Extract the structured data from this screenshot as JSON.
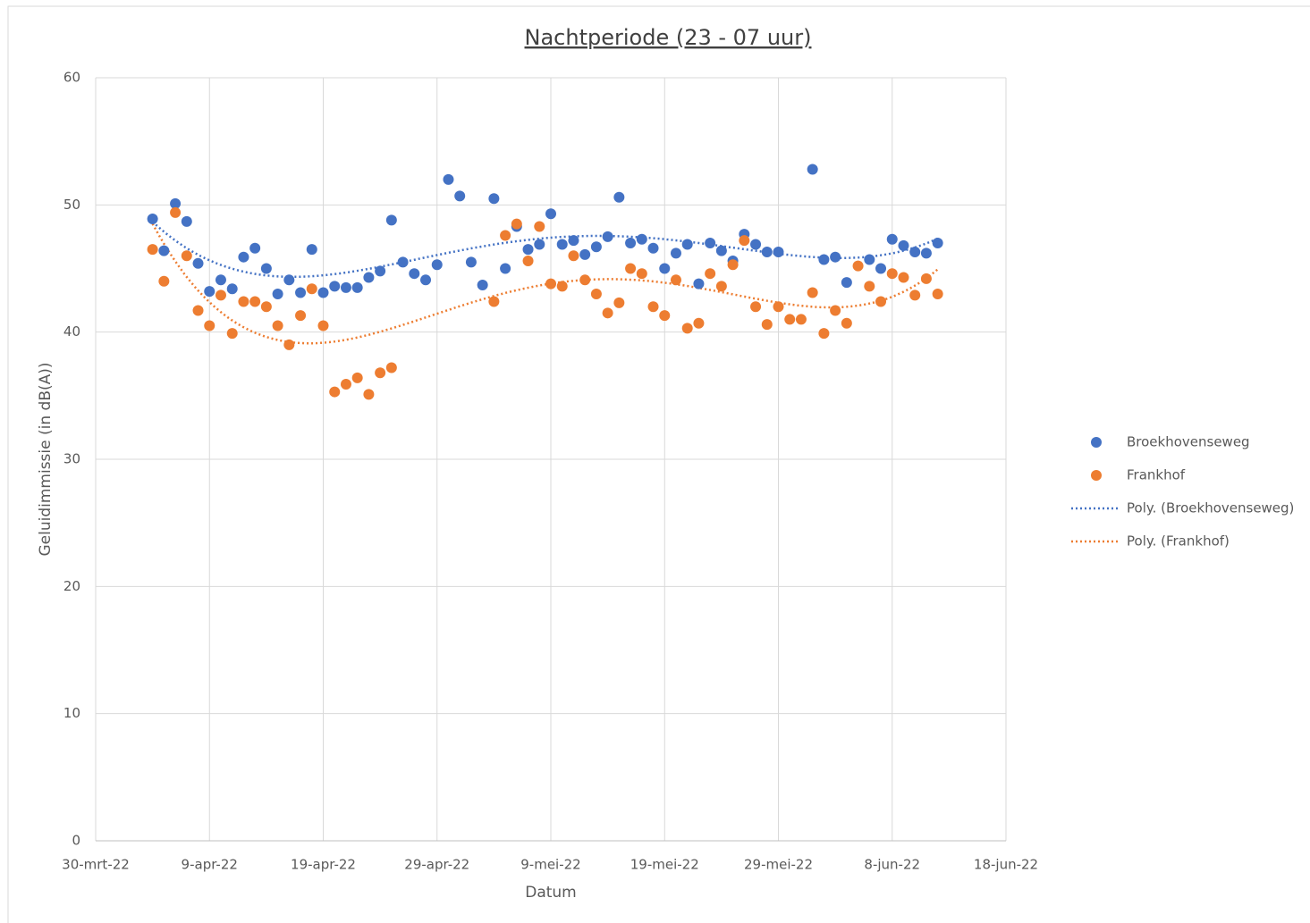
{
  "chart_data": {
    "type": "scatter",
    "title": "Nachtperiode (23 - 07 uur)",
    "x_label": "Datum",
    "y_label": "Geluidimmissie (in dB(A))",
    "x": [
      "2022-04-04",
      "2022-04-05",
      "2022-04-06",
      "2022-04-07",
      "2022-04-08",
      "2022-04-09",
      "2022-04-10",
      "2022-04-11",
      "2022-04-12",
      "2022-04-13",
      "2022-04-14",
      "2022-04-15",
      "2022-04-16",
      "2022-04-17",
      "2022-04-18",
      "2022-04-19",
      "2022-04-20",
      "2022-04-21",
      "2022-04-22",
      "2022-04-23",
      "2022-04-24",
      "2022-04-25",
      "2022-04-26",
      "2022-04-27",
      "2022-04-28",
      "2022-04-29",
      "2022-04-30",
      "2022-05-01",
      "2022-05-02",
      "2022-05-03",
      "2022-05-04",
      "2022-05-05",
      "2022-05-06",
      "2022-05-07",
      "2022-05-08",
      "2022-05-09",
      "2022-05-10",
      "2022-05-11",
      "2022-05-12",
      "2022-05-13",
      "2022-05-14",
      "2022-05-15",
      "2022-05-16",
      "2022-05-17",
      "2022-05-18",
      "2022-05-19",
      "2022-05-20",
      "2022-05-21",
      "2022-05-22",
      "2022-05-23",
      "2022-05-24",
      "2022-05-25",
      "2022-05-26",
      "2022-05-27",
      "2022-05-28",
      "2022-05-29",
      "2022-05-30",
      "2022-05-31",
      "2022-06-01",
      "2022-06-02",
      "2022-06-03",
      "2022-06-04",
      "2022-06-05",
      "2022-06-06",
      "2022-06-07",
      "2022-06-08",
      "2022-06-09",
      "2022-06-10",
      "2022-06-11",
      "2022-06-12"
    ],
    "series": [
      {
        "name": "Broekhovenseweg",
        "color": "#4472c4",
        "values": [
          48.9,
          46.4,
          50.1,
          48.7,
          45.4,
          43.2,
          44.1,
          43.4,
          45.9,
          46.6,
          45.0,
          43.0,
          44.1,
          43.1,
          46.5,
          43.1,
          43.6,
          43.5,
          43.5,
          44.3,
          44.8,
          48.8,
          45.5,
          44.6,
          44.1,
          45.3,
          52.0,
          50.7,
          45.5,
          43.7,
          50.5,
          45.0,
          48.3,
          46.5,
          46.9,
          49.3,
          46.9,
          47.2,
          46.1,
          46.7,
          47.5,
          50.6,
          47.0,
          47.3,
          46.6,
          45.0,
          46.2,
          46.9,
          43.8,
          47.0,
          46.4,
          45.6,
          47.7,
          46.9,
          46.3,
          46.3,
          null,
          null,
          52.8,
          45.7,
          45.9,
          43.9,
          null,
          45.7,
          45.0,
          47.3,
          46.8,
          46.3,
          46.2,
          47.0
        ]
      },
      {
        "name": "Frankhof",
        "color": "#ed7d31",
        "values": [
          46.5,
          44.0,
          49.4,
          46.0,
          41.7,
          40.5,
          42.9,
          39.9,
          42.4,
          42.4,
          42.0,
          40.5,
          39.0,
          41.3,
          43.4,
          40.5,
          35.3,
          35.9,
          36.4,
          35.1,
          36.8,
          37.2,
          null,
          null,
          null,
          null,
          null,
          null,
          null,
          null,
          42.4,
          47.6,
          48.5,
          45.6,
          48.3,
          43.8,
          43.6,
          46.0,
          44.1,
          43.0,
          41.5,
          42.3,
          45.0,
          44.6,
          42.0,
          41.3,
          44.1,
          40.3,
          40.7,
          44.6,
          43.6,
          45.3,
          47.2,
          42.0,
          40.6,
          42.0,
          41.0,
          41.0,
          43.1,
          39.9,
          41.7,
          40.7,
          45.2,
          43.6,
          42.4,
          44.6,
          44.3,
          42.9,
          44.2,
          43.0
        ]
      }
    ],
    "trendlines": [
      {
        "name": "Poly. (Broekhovenseweg)",
        "series": 0,
        "order": 4,
        "color": "#4472c4"
      },
      {
        "name": "Poly. (Frankhof)",
        "series": 1,
        "order": 4,
        "color": "#ed7d31"
      }
    ],
    "xlim": [
      "2022-03-30",
      "2022-06-18"
    ],
    "xticks": [
      {
        "value": "2022-03-30",
        "label": "30-mrt-22"
      },
      {
        "value": "2022-04-09",
        "label": "9-apr-22"
      },
      {
        "value": "2022-04-19",
        "label": "19-apr-22"
      },
      {
        "value": "2022-04-29",
        "label": "29-apr-22"
      },
      {
        "value": "2022-05-09",
        "label": "9-mei-22"
      },
      {
        "value": "2022-05-19",
        "label": "19-mei-22"
      },
      {
        "value": "2022-05-29",
        "label": "29-mei-22"
      },
      {
        "value": "2022-06-08",
        "label": "8-jun-22"
      },
      {
        "value": "2022-06-18",
        "label": "18-jun-22"
      }
    ],
    "ylim": [
      0,
      60
    ],
    "yticks": [
      0,
      10,
      20,
      30,
      40,
      50,
      60
    ],
    "grid": true,
    "legend": "right"
  }
}
